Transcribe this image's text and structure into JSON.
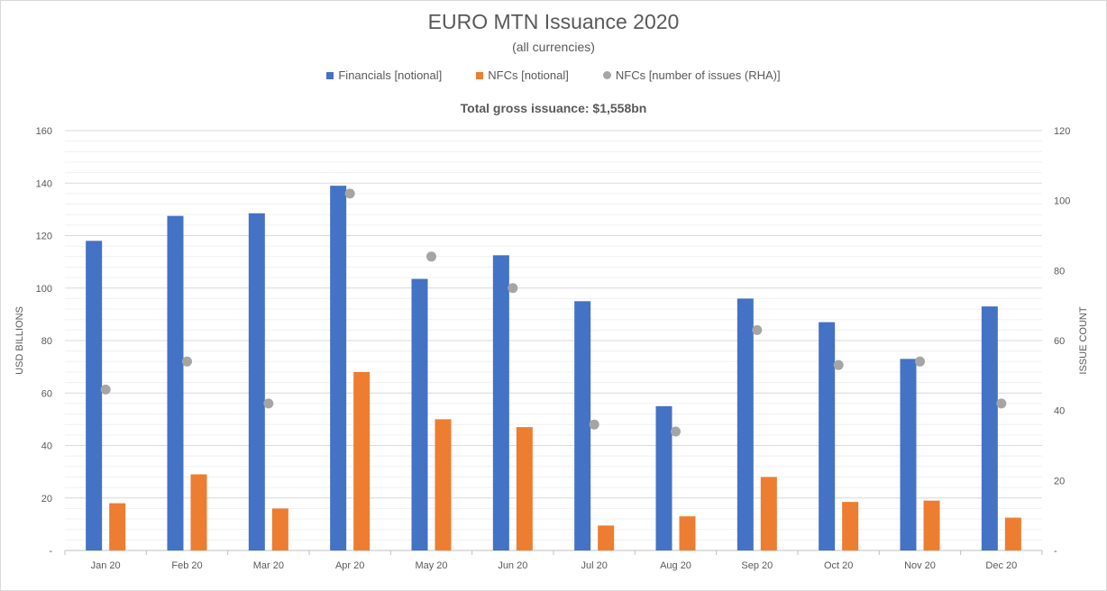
{
  "chart_data": {
    "type": "bar",
    "title": "EURO MTN Issuance 2020",
    "subtitle": "(all currencies)",
    "annotation": "Total gross issuance: $1,558bn",
    "ylabel": "USD BILLIONS",
    "y2label": "ISSUE COUNT",
    "ylim": [
      0,
      160
    ],
    "y2lim": [
      0,
      120
    ],
    "yticks": [
      "-",
      "20",
      "40",
      "60",
      "80",
      "100",
      "120",
      "140",
      "160"
    ],
    "y2ticks": [
      "-",
      "20",
      "40",
      "60",
      "80",
      "100",
      "120"
    ],
    "categories": [
      "Jan 20",
      "Feb 20",
      "Mar 20",
      "Apr 20",
      "May 20",
      "Jun 20",
      "Jul 20",
      "Aug 20",
      "Sep 20",
      "Oct 20",
      "Nov 20",
      "Dec 20"
    ],
    "series": [
      {
        "name": "Financials [notional]",
        "type": "bar",
        "axis": "left",
        "color": "#4472c4",
        "values": [
          118,
          127.5,
          128.5,
          139,
          103.5,
          112.5,
          95,
          55,
          96,
          87,
          73,
          93
        ]
      },
      {
        "name": "NFCs [notional]",
        "type": "bar",
        "axis": "left",
        "color": "#ed7d31",
        "values": [
          18,
          29,
          16,
          68,
          50,
          47,
          9.5,
          13,
          28,
          18.5,
          19,
          12.5
        ]
      },
      {
        "name": "NFCs [number of issues (RHA)]",
        "type": "scatter",
        "axis": "right",
        "color": "#a5a5a5",
        "values": [
          46,
          54,
          42,
          102,
          84,
          75,
          36,
          34,
          63,
          53,
          54,
          42
        ]
      }
    ],
    "grid": true,
    "legend_position": "top"
  }
}
